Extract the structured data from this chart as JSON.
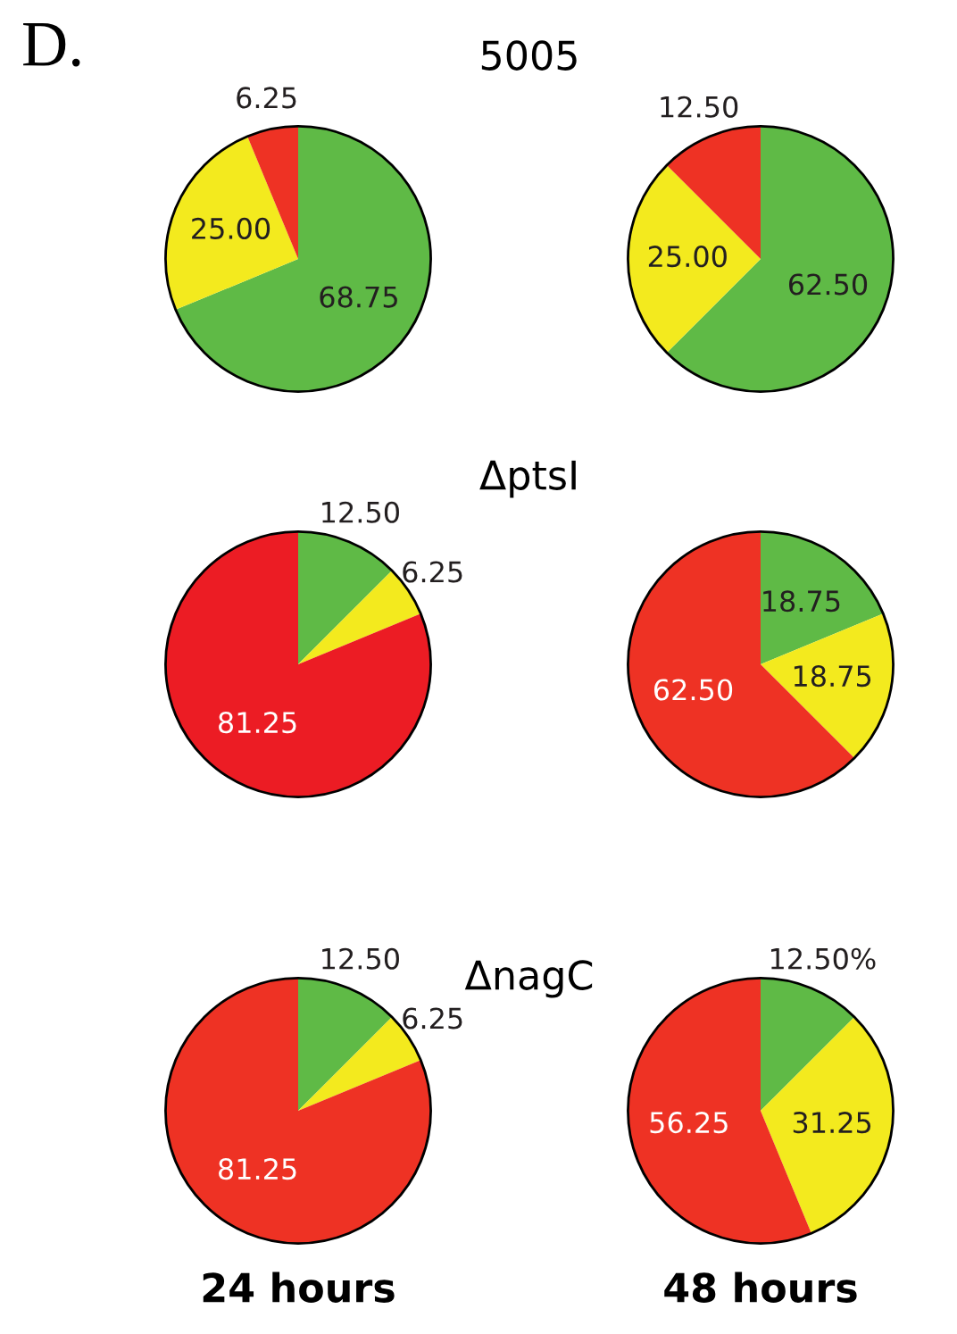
{
  "chart_data": [
    {
      "type": "pie",
      "title": "5005",
      "annotations": [
        "D."
      ],
      "categories": [
        null,
        null,
        null
      ],
      "values": [
        68.75,
        25.0,
        6.25
      ],
      "colors": [
        "#5fba46",
        "#f3ea1e",
        "#ee3224"
      ],
      "value_labels": [
        "68.75",
        "25.00",
        "6.25"
      ]
    },
    {
      "type": "pie",
      "categories": [
        null,
        null,
        null
      ],
      "values": [
        62.5,
        25.0,
        12.5
      ],
      "colors": [
        "#5fba46",
        "#f3ea1e",
        "#ee3224"
      ],
      "value_labels": [
        "62.50",
        "25.00",
        "12.50"
      ]
    },
    {
      "type": "pie",
      "title": "ΔptsI",
      "categories": [
        null,
        null,
        null
      ],
      "values": [
        12.5,
        6.25,
        81.25
      ],
      "colors": [
        "#5fba46",
        "#f3ea1e",
        "#ec1c24"
      ],
      "value_labels": [
        "12.50",
        "6.25",
        "81.25"
      ]
    },
    {
      "type": "pie",
      "categories": [
        null,
        null,
        null
      ],
      "values": [
        18.75,
        18.75,
        62.5
      ],
      "colors": [
        "#5fba46",
        "#f3ea1e",
        "#ee3224"
      ],
      "value_labels": [
        "18.75",
        "18.75",
        "62.50"
      ]
    },
    {
      "type": "pie",
      "title": "ΔnagC",
      "xlabel": "24 hours",
      "categories": [
        null,
        null,
        null
      ],
      "values": [
        12.5,
        6.25,
        81.25
      ],
      "colors": [
        "#5fba46",
        "#f3ea1e",
        "#ee3224"
      ],
      "value_labels": [
        "12.50",
        "6.25",
        "81.25"
      ]
    },
    {
      "type": "pie",
      "xlabel": "48 hours",
      "categories": [
        null,
        null,
        null
      ],
      "values": [
        12.5,
        31.25,
        56.25
      ],
      "colors": [
        "#5fba46",
        "#f3ea1e",
        "#ee3224"
      ],
      "value_labels": [
        "12.50%",
        "31.25",
        "56.25"
      ]
    }
  ]
}
